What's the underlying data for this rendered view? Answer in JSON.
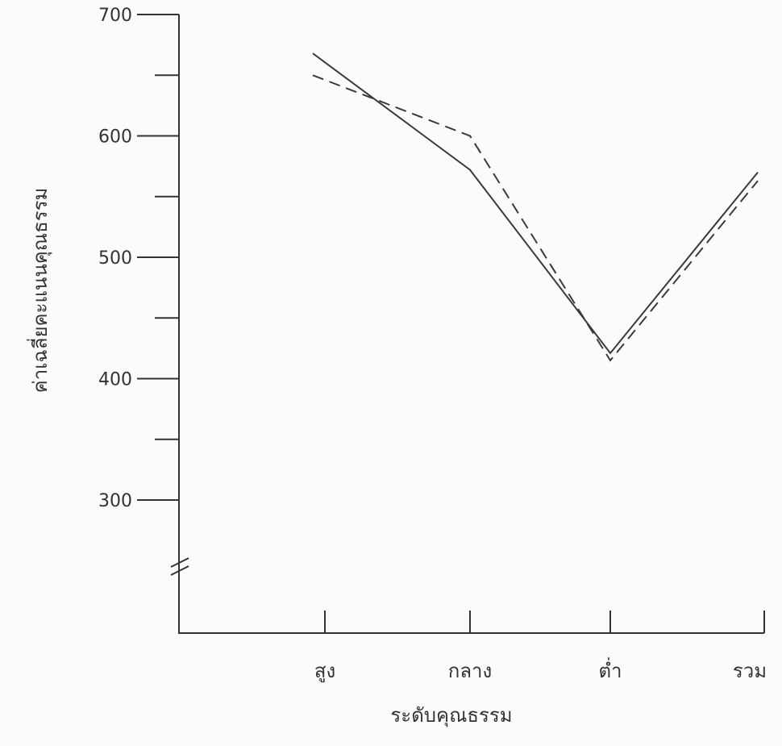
{
  "chart_data": {
    "type": "line",
    "title": "",
    "xlabel": "ระดับคุณธรรม",
    "ylabel": "ค่าเฉลี่ยคะแนนคุณธรรม",
    "categories": [
      "สูง",
      "กลาง",
      "ต่ำ",
      "รวม"
    ],
    "y_ticks": [
      "700",
      "600",
      "500",
      "400",
      "300"
    ],
    "ylim": [
      220,
      700
    ],
    "axis_break": true,
    "grid": false,
    "series": [
      {
        "style": "solid",
        "x": [
          "สูง",
          "กลาง",
          "ต่ำ",
          "รวม"
        ],
        "values": [
          668,
          572,
          421,
          570
        ]
      },
      {
        "style": "dashed",
        "x": [
          "สูง",
          "กลาง",
          "ต่ำ",
          "รวม"
        ],
        "values": [
          650,
          600,
          415,
          563
        ]
      }
    ]
  }
}
